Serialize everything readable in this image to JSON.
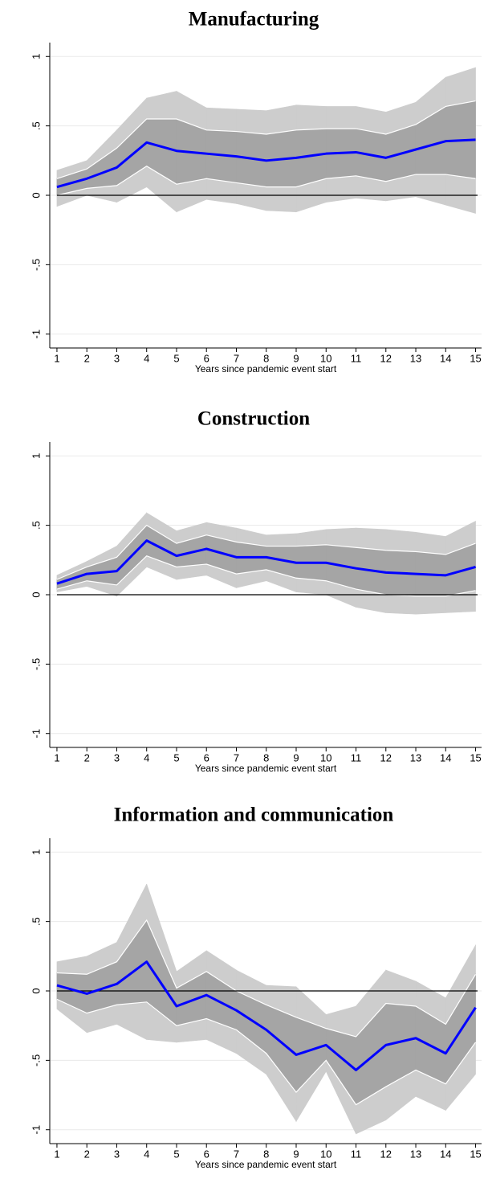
{
  "chart_data": [
    {
      "type": "line",
      "title": "Manufacturing",
      "x_label": "Years since pandemic event start",
      "x": [
        1,
        2,
        3,
        4,
        5,
        6,
        7,
        8,
        9,
        10,
        11,
        12,
        13,
        14,
        15
      ],
      "xlim": [
        0.76,
        15.2
      ],
      "xticks": [
        1,
        2,
        3,
        4,
        5,
        6,
        7,
        8,
        9,
        10,
        11,
        12,
        13,
        14,
        15
      ],
      "ylim": [
        -1.1,
        1.1
      ],
      "yticks": [
        1,
        {
          "value": 0.5,
          "label": ".5"
        },
        0,
        {
          "value": -0.5,
          "label": "-.5"
        },
        -1
      ],
      "grid": true,
      "reference_line": 0,
      "bands": [
        {
          "color": "#cdcdcd",
          "upper": [
            0.18,
            0.25,
            0.47,
            0.7,
            0.75,
            0.63,
            0.62,
            0.61,
            0.65,
            0.64,
            0.64,
            0.6,
            0.67,
            0.85,
            0.92
          ],
          "lower": [
            -0.08,
            0,
            -0.05,
            0.06,
            -0.12,
            -0.03,
            -0.06,
            -0.11,
            -0.12,
            -0.05,
            -0.02,
            -0.04,
            -0.01,
            -0.07,
            -0.13
          ]
        },
        {
          "color": "#a5a5a5",
          "upper": [
            0.12,
            0.19,
            0.34,
            0.55,
            0.55,
            0.47,
            0.46,
            0.44,
            0.47,
            0.48,
            0.48,
            0.44,
            0.51,
            0.64,
            0.68
          ],
          "lower": [
            0,
            0.05,
            0.07,
            0.21,
            0.08,
            0.12,
            0.09,
            0.06,
            0.06,
            0.12,
            0.14,
            0.1,
            0.15,
            0.15,
            0.12
          ]
        }
      ],
      "series": [
        {
          "color": "#0000ff",
          "values": [
            0.06,
            0.12,
            0.2,
            0.38,
            0.32,
            0.3,
            0.28,
            0.25,
            0.27,
            0.3,
            0.31,
            0.27,
            0.33,
            0.39,
            0.4
          ]
        }
      ]
    },
    {
      "type": "line",
      "title": "Construction",
      "x_label": "Years since pandemic event start",
      "x": [
        1,
        2,
        3,
        4,
        5,
        6,
        7,
        8,
        9,
        10,
        11,
        12,
        13,
        14,
        15
      ],
      "xlim": [
        0.76,
        15.2
      ],
      "xticks": [
        1,
        2,
        3,
        4,
        5,
        6,
        7,
        8,
        9,
        10,
        11,
        12,
        13,
        14,
        15
      ],
      "ylim": [
        -1.1,
        1.1
      ],
      "yticks": [
        1,
        {
          "value": 0.5,
          "label": ".5"
        },
        0,
        {
          "value": -0.5,
          "label": "-.5"
        },
        -1
      ],
      "grid": true,
      "reference_line": 0,
      "bands": [
        {
          "color": "#cdcdcd",
          "upper": [
            0.14,
            0.24,
            0.35,
            0.59,
            0.46,
            0.52,
            0.48,
            0.43,
            0.44,
            0.47,
            0.48,
            0.47,
            0.45,
            0.42,
            0.53
          ],
          "lower": [
            0.02,
            0.06,
            -0.01,
            0.2,
            0.11,
            0.14,
            0.05,
            0.1,
            0.02,
            0,
            -0.09,
            -0.13,
            -0.14,
            -0.13,
            -0.12
          ]
        },
        {
          "color": "#a5a5a5",
          "upper": [
            0.11,
            0.2,
            0.27,
            0.5,
            0.37,
            0.43,
            0.38,
            0.35,
            0.35,
            0.36,
            0.34,
            0.32,
            0.31,
            0.29,
            0.37
          ],
          "lower": [
            0.04,
            0.1,
            0.07,
            0.28,
            0.2,
            0.22,
            0.15,
            0.18,
            0.12,
            0.1,
            0.04,
            0,
            -0.01,
            -0.01,
            0.03
          ]
        }
      ],
      "series": [
        {
          "color": "#0000ff",
          "values": [
            0.08,
            0.15,
            0.17,
            0.39,
            0.28,
            0.33,
            0.27,
            0.27,
            0.23,
            0.23,
            0.19,
            0.16,
            0.15,
            0.14,
            0.2
          ]
        }
      ]
    },
    {
      "type": "line",
      "title": "Information and communication",
      "x_label": "Years since pandemic event start",
      "x": [
        1,
        2,
        3,
        4,
        5,
        6,
        7,
        8,
        9,
        10,
        11,
        12,
        13,
        14,
        15
      ],
      "xlim": [
        0.76,
        15.2
      ],
      "xticks": [
        1,
        2,
        3,
        4,
        5,
        6,
        7,
        8,
        9,
        10,
        11,
        12,
        13,
        14,
        15
      ],
      "ylim": [
        -1.1,
        1.1
      ],
      "yticks": [
        1,
        {
          "value": 0.5,
          "label": ".5"
        },
        0,
        {
          "value": -0.5,
          "label": "-.5"
        },
        -1
      ],
      "grid": true,
      "reference_line": 0,
      "bands": [
        {
          "color": "#cdcdcd",
          "upper": [
            0.21,
            0.25,
            0.35,
            0.77,
            0.14,
            0.29,
            0.15,
            0.04,
            0.03,
            -0.17,
            -0.11,
            0.15,
            0.07,
            -0.05,
            0.33
          ],
          "lower": [
            -0.13,
            -0.3,
            -0.24,
            -0.35,
            -0.37,
            -0.35,
            -0.45,
            -0.6,
            -0.94,
            -0.58,
            -1.03,
            -0.93,
            -0.76,
            -0.86,
            -0.6
          ]
        },
        {
          "color": "#a5a5a5",
          "upper": [
            0.13,
            0.12,
            0.21,
            0.51,
            0.02,
            0.14,
            0,
            -0.1,
            -0.19,
            -0.27,
            -0.33,
            -0.09,
            -0.11,
            -0.24,
            0.12
          ],
          "lower": [
            -0.06,
            -0.16,
            -0.1,
            -0.08,
            -0.25,
            -0.2,
            -0.28,
            -0.45,
            -0.73,
            -0.5,
            -0.82,
            -0.69,
            -0.57,
            -0.67,
            -0.37
          ]
        }
      ],
      "series": [
        {
          "color": "#0000ff",
          "values": [
            0.04,
            -0.02,
            0.05,
            0.21,
            -0.11,
            -0.03,
            -0.14,
            -0.28,
            -0.46,
            -0.39,
            -0.57,
            -0.39,
            -0.34,
            -0.45,
            -0.12
          ]
        }
      ]
    }
  ]
}
